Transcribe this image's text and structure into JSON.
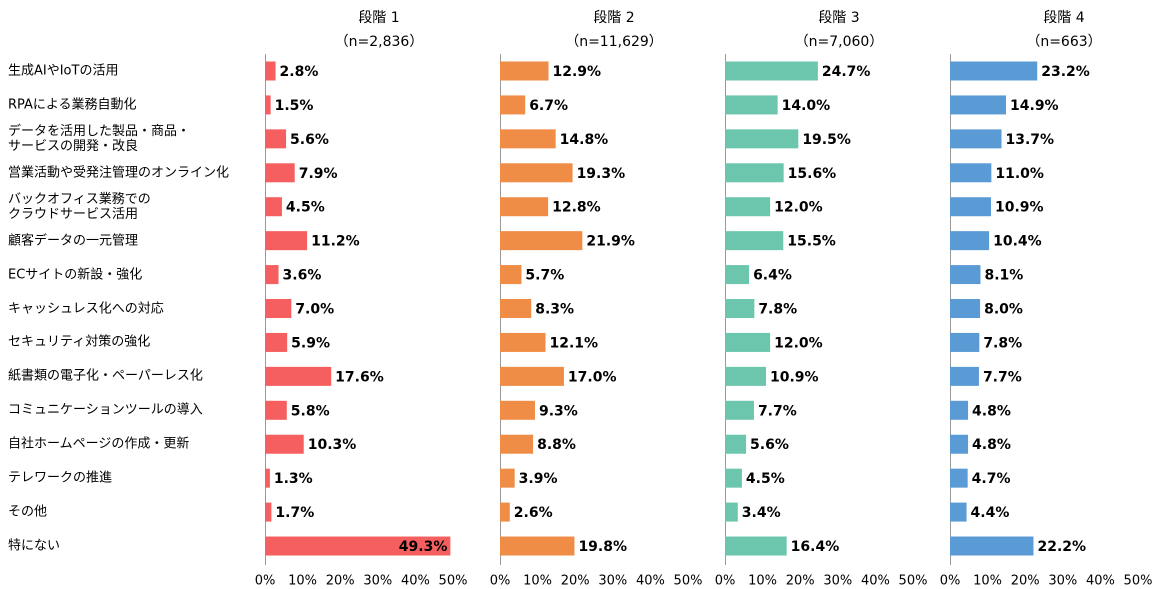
{
  "chart_data": [
    {
      "type": "bar",
      "title": "段階 1",
      "subtitle": "（n=2,836）",
      "color": "#f65f5f",
      "categories": [
        "生成AIやIoTの活用",
        "RPAによる業務自動化",
        "データを活用した製品・商品・\nサービスの開発・改良",
        "営業活動や受発注管理のオンライン化",
        "バックオフィス業務での\nクラウドサービス活用",
        "顧客データの一元管理",
        "ECサイトの新設・強化",
        "キャッシュレス化への対応",
        "セキュリティ対策の強化",
        "紙書類の電子化・ペーパーレス化",
        "コミュニケーションツールの導入",
        "自社ホームページの作成・更新",
        "テレワークの推進",
        "その他",
        "特にない"
      ],
      "values": [
        2.8,
        1.5,
        5.6,
        7.9,
        4.5,
        11.2,
        3.6,
        7.0,
        5.9,
        17.6,
        5.8,
        10.3,
        1.3,
        1.7,
        49.3
      ],
      "value_labels": [
        "2.8%",
        "1.5%",
        "5.6%",
        "7.9%",
        "4.5%",
        "11.2%",
        "3.6%",
        "7.0%",
        "5.9%",
        "17.6%",
        "5.8%",
        "10.3%",
        "1.3%",
        "1.7%",
        "49.3%"
      ],
      "xlim": [
        0,
        50
      ],
      "xticks": [
        {
          "value": 0,
          "label": "0%"
        },
        {
          "value": 10,
          "label": "10%"
        },
        {
          "value": 20,
          "label": "20%"
        },
        {
          "value": 30,
          "label": "30%"
        },
        {
          "value": 40,
          "label": "40%"
        },
        {
          "value": 50,
          "label": "50%"
        }
      ]
    },
    {
      "type": "bar",
      "title": "段階 2",
      "subtitle": "（n=11,629）",
      "color": "#ef8c45",
      "values": [
        12.9,
        6.7,
        14.8,
        19.3,
        12.8,
        21.9,
        5.7,
        8.3,
        12.1,
        17.0,
        9.3,
        8.8,
        3.9,
        2.6,
        19.8
      ],
      "value_labels": [
        "12.9%",
        "6.7%",
        "14.8%",
        "19.3%",
        "12.8%",
        "21.9%",
        "5.7%",
        "8.3%",
        "12.1%",
        "17.0%",
        "9.3%",
        "8.8%",
        "3.9%",
        "2.6%",
        "19.8%"
      ],
      "xlim": [
        0,
        50
      ],
      "xticks": [
        {
          "value": 0,
          "label": "0%"
        },
        {
          "value": 10,
          "label": "10%"
        },
        {
          "value": 20,
          "label": "20%"
        },
        {
          "value": 30,
          "label": "30%"
        },
        {
          "value": 40,
          "label": "40%"
        },
        {
          "value": 50,
          "label": "50%"
        }
      ]
    },
    {
      "type": "bar",
      "title": "段階 3",
      "subtitle": "（n=7,060）",
      "color": "#6cc6ad",
      "values": [
        24.7,
        14.0,
        19.5,
        15.6,
        12.0,
        15.5,
        6.4,
        7.8,
        12.0,
        10.9,
        7.7,
        5.6,
        4.5,
        3.4,
        16.4
      ],
      "value_labels": [
        "24.7%",
        "14.0%",
        "19.5%",
        "15.6%",
        "12.0%",
        "15.5%",
        "6.4%",
        "7.8%",
        "12.0%",
        "10.9%",
        "7.7%",
        "5.6%",
        "4.5%",
        "3.4%",
        "16.4%"
      ],
      "xlim": [
        0,
        50
      ],
      "xticks": [
        {
          "value": 0,
          "label": "0%"
        },
        {
          "value": 10,
          "label": "10%"
        },
        {
          "value": 20,
          "label": "20%"
        },
        {
          "value": 30,
          "label": "30%"
        },
        {
          "value": 40,
          "label": "40%"
        },
        {
          "value": 50,
          "label": "50%"
        }
      ]
    },
    {
      "type": "bar",
      "title": "段階 4",
      "subtitle": "（n=663）",
      "color": "#5b9bd5",
      "values": [
        23.2,
        14.9,
        13.7,
        11.0,
        10.9,
        10.4,
        8.1,
        8.0,
        7.8,
        7.7,
        4.8,
        4.8,
        4.7,
        4.4,
        22.2
      ],
      "value_labels": [
        "23.2%",
        "14.9%",
        "13.7%",
        "11.0%",
        "10.9%",
        "10.4%",
        "8.1%",
        "8.0%",
        "7.8%",
        "7.7%",
        "4.8%",
        "4.8%",
        "4.7%",
        "4.4%",
        "22.2%"
      ],
      "xlim": [
        0,
        50
      ],
      "xticks": [
        {
          "value": 0,
          "label": "0%"
        },
        {
          "value": 10,
          "label": "10%"
        },
        {
          "value": 20,
          "label": "20%"
        },
        {
          "value": 30,
          "label": "30%"
        },
        {
          "value": 40,
          "label": "40%"
        },
        {
          "value": 50,
          "label": "50%"
        }
      ]
    }
  ]
}
